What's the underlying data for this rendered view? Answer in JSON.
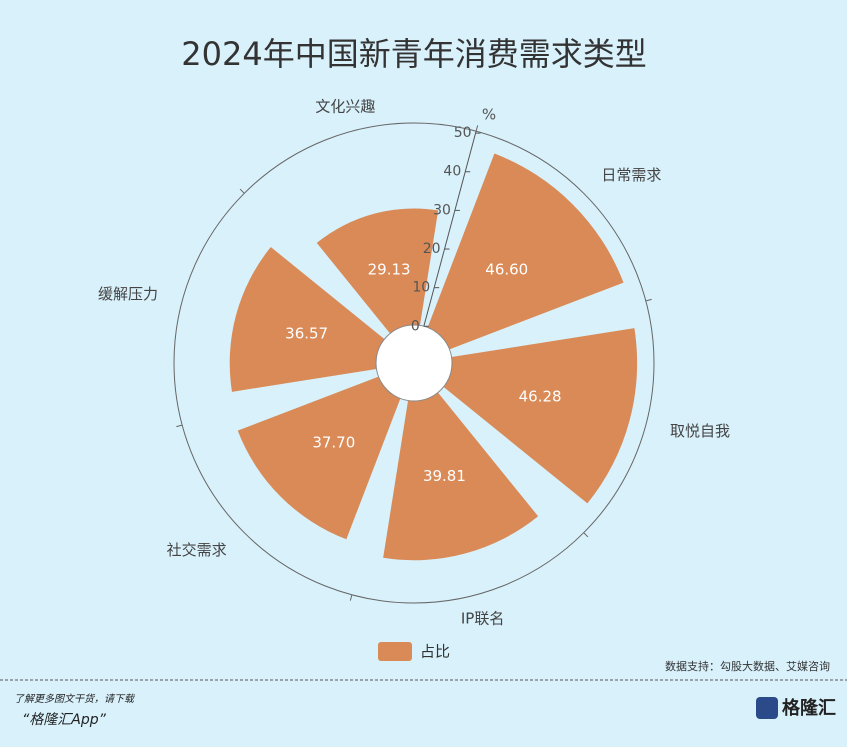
{
  "chart_data": {
    "type": "polar-bar",
    "title": "2024年中国新青年消费需求类型",
    "radial_axis_label": "%",
    "categories": [
      "文化兴趣",
      "日常需求",
      "取悦自我",
      "IP联名",
      "社交需求",
      "缓解压力"
    ],
    "series": [
      {
        "name": "占比",
        "color": "#d98a56",
        "values": [
          29.13,
          46.6,
          46.28,
          39.81,
          37.7,
          36.57
        ],
        "value_labels": [
          "29.13",
          "46.60",
          "46.28",
          "39.81",
          "37.70",
          "36.57"
        ]
      }
    ],
    "ylim": [
      0,
      50
    ],
    "yticks": [
      0,
      10,
      20,
      30,
      40,
      50
    ],
    "legend": "bottom"
  },
  "source": "数据支持：勾股大数据、艾媒咨询",
  "footer": {
    "line1": "了解更多图文干货，请下载",
    "line2": "“格隆汇App”",
    "logo": "格隆汇"
  }
}
